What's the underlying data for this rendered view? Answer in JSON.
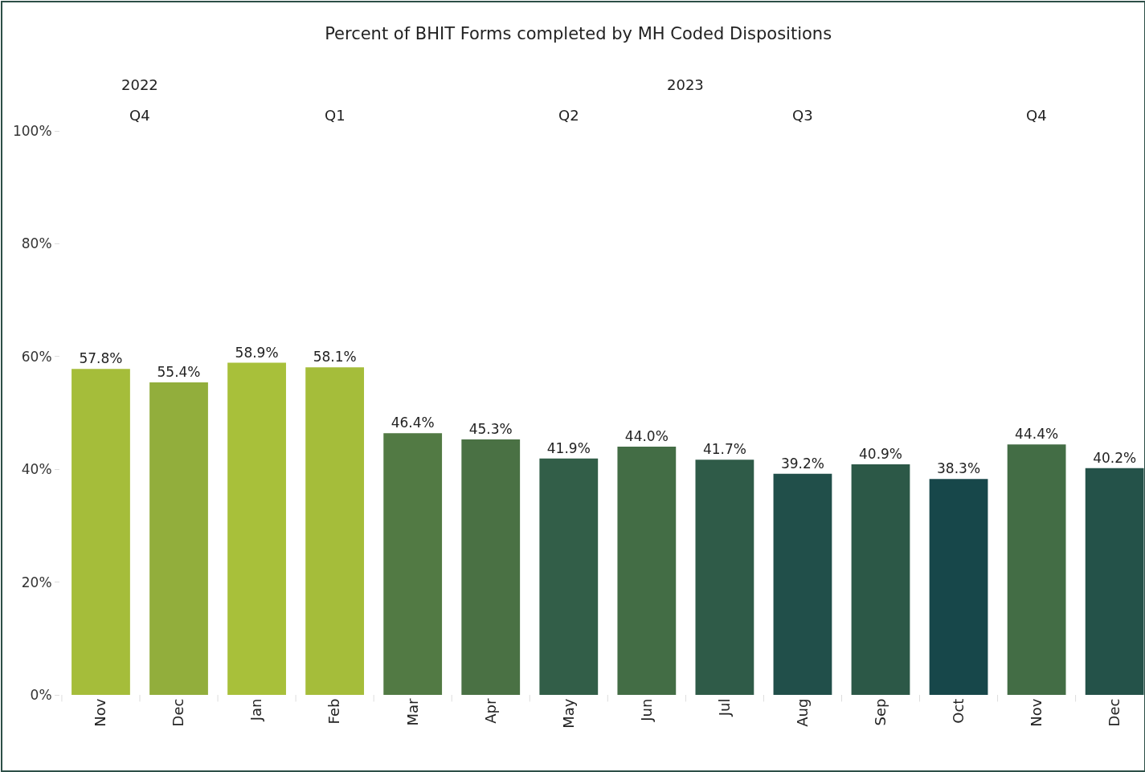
{
  "chart_data": {
    "type": "bar",
    "title": "Percent of BHIT Forms completed by MH Coded Dispositions",
    "categories": [
      "Nov",
      "Dec",
      "Jan",
      "Feb",
      "Mar",
      "Apr",
      "May",
      "Jun",
      "Jul",
      "Aug",
      "Sep",
      "Oct",
      "Nov",
      "Dec"
    ],
    "values": [
      57.8,
      55.4,
      58.9,
      58.1,
      46.4,
      45.3,
      41.9,
      44.0,
      41.7,
      39.2,
      40.9,
      38.3,
      44.4,
      40.2
    ],
    "value_labels": [
      "57.8%",
      "55.4%",
      "58.9%",
      "58.1%",
      "46.4%",
      "45.3%",
      "41.9%",
      "44.0%",
      "41.7%",
      "39.2%",
      "40.9%",
      "38.3%",
      "44.4%",
      "40.2%"
    ],
    "colors": [
      "#a5bd3a",
      "#92ae3c",
      "#a8c03a",
      "#a5bd3a",
      "#527a44",
      "#4a7144",
      "#325e48",
      "#436d45",
      "#2f5b48",
      "#214f4a",
      "#2c5847",
      "#17474a",
      "#436d45",
      "#245249"
    ],
    "ylim": [
      0,
      100
    ],
    "yticks": [
      {
        "value": 0,
        "label": "0%"
      },
      {
        "value": 20,
        "label": "20%"
      },
      {
        "value": 40,
        "label": "40%"
      },
      {
        "value": 60,
        "label": "60%"
      },
      {
        "value": 80,
        "label": "80%"
      },
      {
        "value": 100,
        "label": "100%"
      }
    ],
    "annotations": [
      "2022",
      "2023",
      "Q4",
      "Q1",
      "Q2",
      "Q3",
      "Q4"
    ]
  }
}
